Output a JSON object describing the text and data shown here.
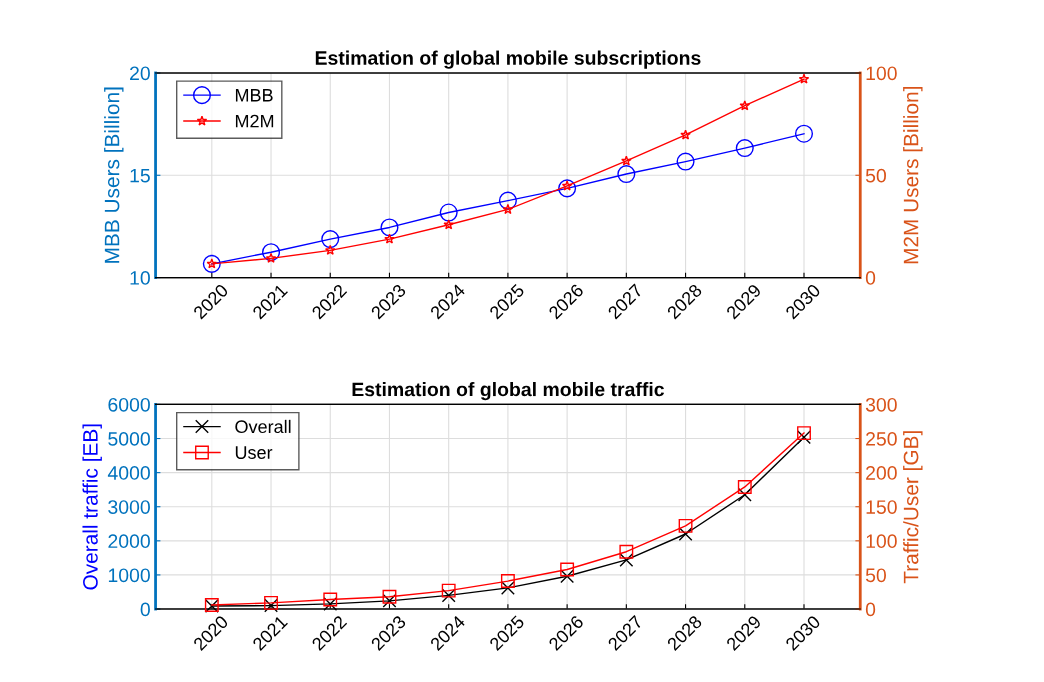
{
  "chart_data": [
    {
      "type": "line",
      "title": "Estimation of global mobile subscriptions",
      "ylabel": "MBB Users [Billion]",
      "y2label": "M2M Users [Billion]",
      "categories": [
        "2020",
        "2021",
        "2022",
        "2023",
        "2024",
        "2025",
        "2026",
        "2027",
        "2028",
        "2029",
        "2030"
      ],
      "series": [
        {
          "name": "MBB",
          "color": "#0000ff",
          "marker": "circle",
          "values": [
            10.67,
            11.24,
            11.88,
            12.45,
            13.18,
            13.76,
            14.36,
            15.06,
            15.67,
            16.33,
            17.03
          ]
        },
        {
          "name": "M2M",
          "color": "#ff0000",
          "marker": "star",
          "axis": "y2",
          "values": [
            6.7,
            9.4,
            13.3,
            18.8,
            25.8,
            33.3,
            44.8,
            57,
            69.7,
            84,
            97
          ]
        }
      ],
      "ylim": [
        10,
        20
      ],
      "yticks": [
        10,
        15,
        20
      ],
      "y2lim": [
        0,
        100
      ],
      "y2ticks": [
        0,
        50,
        100
      ],
      "grid": true,
      "legend": "top left"
    },
    {
      "type": "line",
      "title": "Estimation of global mobile traffic",
      "ylabel": "Overall traffic [EB]",
      "y2label": "Traffic/User [GB]",
      "categories": [
        "2020",
        "2021",
        "2022",
        "2023",
        "2024",
        "2025",
        "2026",
        "2027",
        "2028",
        "2029",
        "2030"
      ],
      "series": [
        {
          "name": "Overall",
          "color": "#000000",
          "marker": "cross",
          "values": [
            90,
            100,
            150,
            240,
            400,
            620,
            960,
            1440,
            2200,
            3350,
            5040
          ]
        },
        {
          "name": "User",
          "color": "#ff0000",
          "marker": "square",
          "axis": "y2",
          "values": [
            6,
            9,
            14,
            18,
            27,
            41,
            58,
            84,
            122,
            179,
            258
          ]
        }
      ],
      "ylim": [
        0,
        6000
      ],
      "yticks": [
        0,
        1000,
        2000,
        3000,
        4000,
        5000,
        6000
      ],
      "y2lim": [
        0,
        300
      ],
      "y2ticks": [
        0,
        50,
        100,
        150,
        200,
        250,
        300
      ],
      "grid": true,
      "legend": "top left"
    }
  ]
}
